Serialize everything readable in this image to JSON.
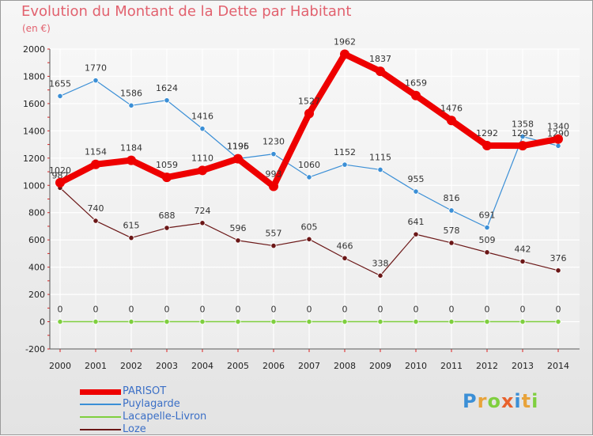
{
  "chart_data": {
    "type": "line",
    "title": "Evolution du Montant de la Dette par Habitant",
    "subtitle": "(en €)",
    "categories": [
      "2000",
      "2001",
      "2002",
      "2003",
      "2004",
      "2005",
      "2006",
      "2007",
      "2008",
      "2009",
      "2010",
      "2011",
      "2012",
      "2013",
      "2014"
    ],
    "ylim": [
      -200,
      2000
    ],
    "yticks": [
      -200,
      0,
      200,
      400,
      600,
      800,
      1000,
      1200,
      1400,
      1600,
      1800,
      2000
    ],
    "grid": true,
    "legend_position": "bottom-left",
    "series": [
      {
        "name": "PARISOT",
        "color": "#ee0000",
        "values": [
          1020,
          1154,
          1184,
          1059,
          1110,
          1195,
          993,
          1527,
          1962,
          1837,
          1659,
          1476,
          1292,
          1291,
          1340
        ]
      },
      {
        "name": "Puylagarde",
        "color": "#3b8fd6",
        "values": [
          1655,
          1770,
          1586,
          1624,
          1416,
          1196,
          1230,
          1060,
          1152,
          1115,
          955,
          816,
          691,
          1358,
          1290
        ]
      },
      {
        "name": "Lacapelle-Livron",
        "color": "#7fcf3f",
        "values": [
          0,
          0,
          0,
          0,
          0,
          0,
          0,
          0,
          0,
          0,
          0,
          0,
          0,
          0,
          0
        ]
      },
      {
        "name": "Loze",
        "color": "#6b1717",
        "values": [
          982,
          740,
          615,
          688,
          724,
          596,
          557,
          605,
          466,
          338,
          641,
          578,
          509,
          442,
          376
        ]
      }
    ]
  },
  "branding": {
    "logo_letters": [
      "P",
      "r",
      "o",
      "x",
      "i",
      "t",
      "i"
    ],
    "logo_colors": [
      "#3b8fd6",
      "#e8a33a",
      "#7fcf3f",
      "#e8612c",
      "#3b8fd6",
      "#e8a33a",
      "#7fcf3f"
    ]
  }
}
